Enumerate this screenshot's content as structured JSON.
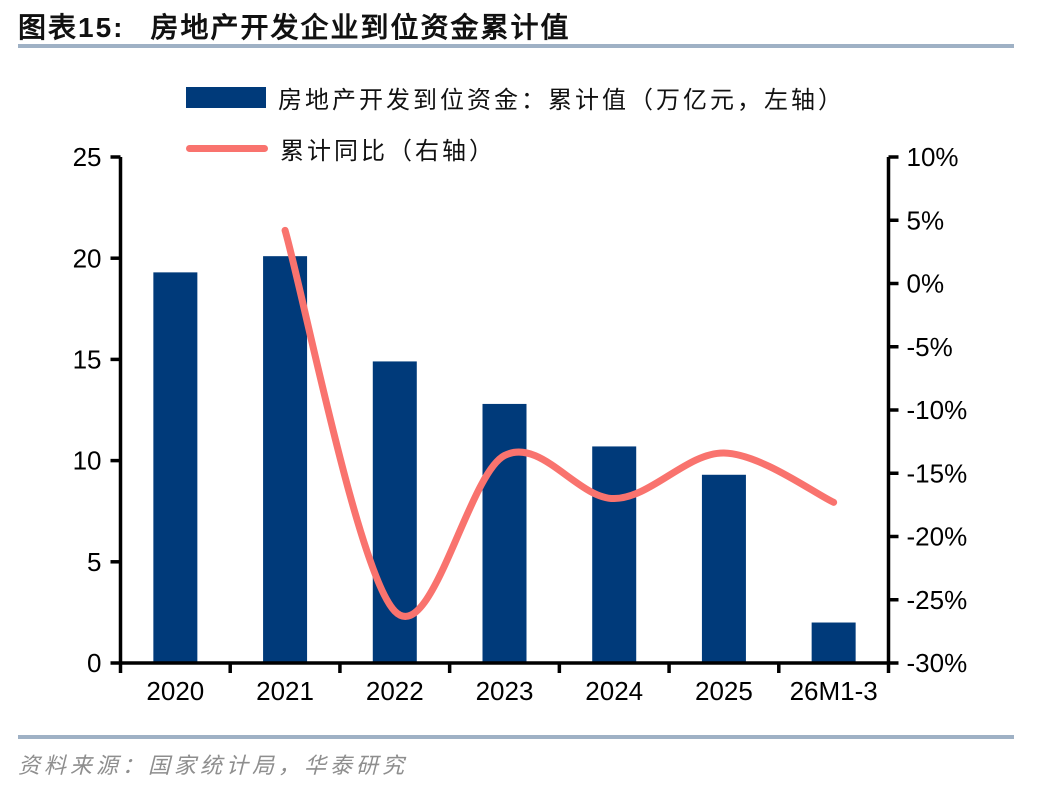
{
  "header": {
    "chart_label": "图表15:",
    "chart_title": "房地产开发企业到位资金累计值"
  },
  "legend": [
    {
      "type": "bar",
      "label": "房地产开发到位资金：累计值（万亿元，左轴）",
      "color": "#003A7A"
    },
    {
      "type": "line",
      "label": "累计同比（右轴）",
      "color": "#F9736E"
    }
  ],
  "footer": {
    "source": "资料来源：国家统计局，华泰研究"
  },
  "colors": {
    "bar": "#003A7A",
    "line": "#F9736E",
    "axis": "#000000",
    "rule": "#9FB1C5",
    "source_text": "#8E8E8E"
  },
  "chart_data": {
    "type": "bar+line combo",
    "title": "房地产开发企业到位资金累计值",
    "categories": [
      "2020",
      "2021",
      "2022",
      "2023",
      "2024",
      "2025",
      "26M1-3"
    ],
    "series": [
      {
        "name": "房地产开发到位资金：累计值（万亿元，左轴）",
        "type": "bar",
        "axis": "left",
        "color": "#003A7A",
        "values": [
          19.3,
          20.1,
          14.9,
          12.8,
          10.7,
          9.3,
          2.0
        ]
      },
      {
        "name": "累计同比（右轴）",
        "type": "line",
        "axis": "right",
        "color": "#F9736E",
        "values": [
          null,
          4.2,
          -25.9,
          -13.6,
          -17.0,
          -13.4,
          -17.3
        ]
      }
    ],
    "left_axis": {
      "min": 0,
      "max": 25,
      "ticks": [
        {
          "value": 0,
          "label": "0"
        },
        {
          "value": 5,
          "label": "5"
        },
        {
          "value": 10,
          "label": "10"
        },
        {
          "value": 15,
          "label": "15"
        },
        {
          "value": 20,
          "label": "20"
        },
        {
          "value": 25,
          "label": "25"
        }
      ]
    },
    "right_axis": {
      "min": -30,
      "max": 10,
      "ticks": [
        {
          "value": -30,
          "label": "-30%"
        },
        {
          "value": -25,
          "label": "-25%"
        },
        {
          "value": -20,
          "label": "-20%"
        },
        {
          "value": -15,
          "label": "-15%"
        },
        {
          "value": -10,
          "label": "-10%"
        },
        {
          "value": -5,
          "label": "-5%"
        },
        {
          "value": 0,
          "label": "0%"
        },
        {
          "value": 5,
          "label": "5%"
        },
        {
          "value": 10,
          "label": "10%"
        }
      ]
    },
    "grid": false,
    "legend_position": "top-left"
  }
}
